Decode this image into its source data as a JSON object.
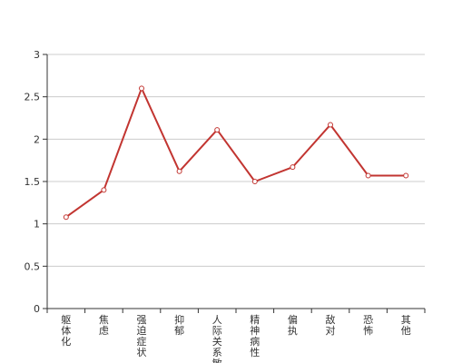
{
  "chart_data": {
    "type": "line",
    "categories": [
      "躯体化",
      "焦虑",
      "强迫症状",
      "抑郁",
      "人际关系敏感",
      "精神病性",
      "偏执",
      "敌对",
      "恐怖",
      "其他"
    ],
    "series": [
      {
        "values": [
          1.08,
          1.4,
          2.6,
          1.62,
          2.11,
          1.5,
          1.67,
          2.17,
          1.57,
          1.57
        ]
      }
    ],
    "yticks": [
      "0",
      "0.5",
      "1",
      "1.5",
      "2",
      "2.5",
      "3"
    ],
    "ylim": [
      0,
      3
    ],
    "grid": true,
    "title": "",
    "xlabel": "",
    "ylabel": "",
    "colors": {
      "line": "#c23531",
      "grid": "#cccccc",
      "axis": "#333333",
      "marker_fill": "#ffffff"
    }
  }
}
